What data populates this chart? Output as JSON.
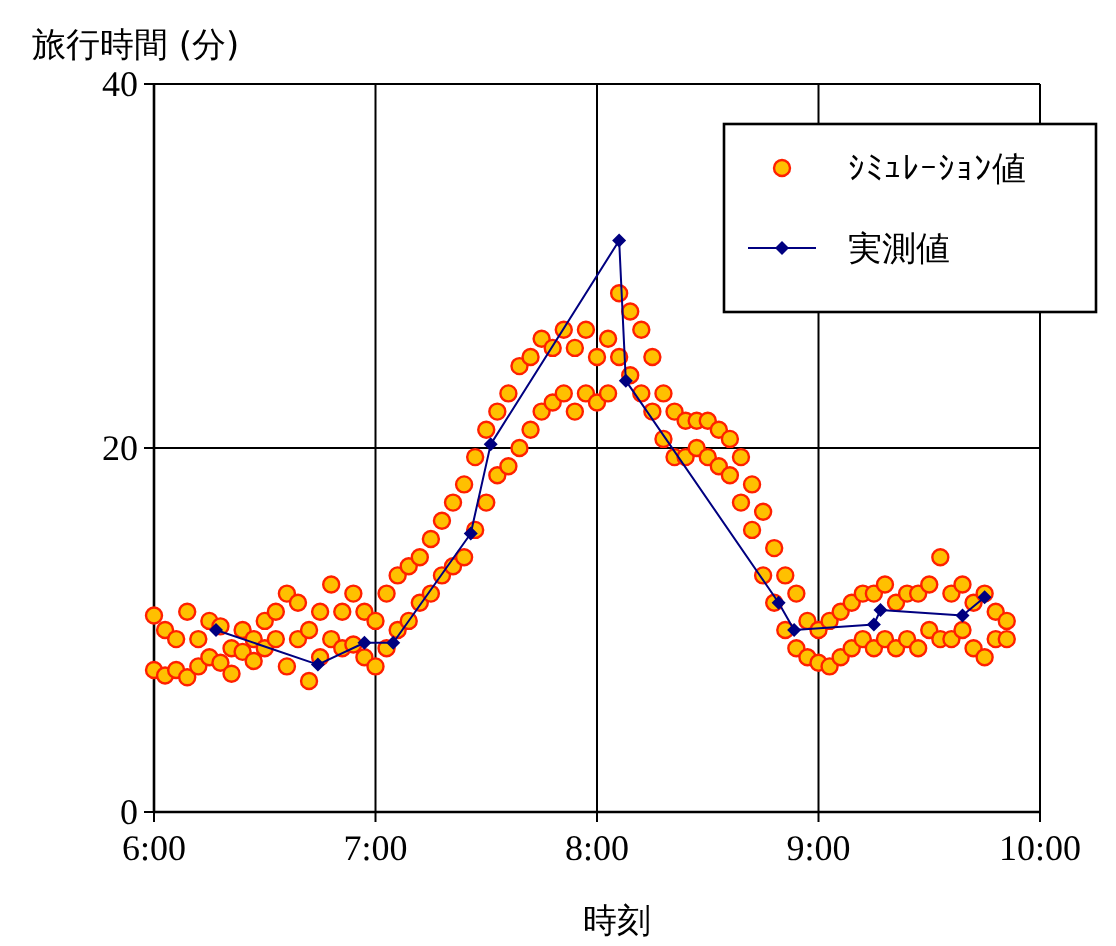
{
  "chart_data": {
    "type": "scatter",
    "ylabel": "旅行時間 (分)",
    "xlabel": "時刻",
    "xlim": [
      6,
      10
    ],
    "xticks": [
      {
        "value": 6,
        "label": "6:00"
      },
      {
        "value": 7,
        "label": "7:00"
      },
      {
        "value": 8,
        "label": "8:00"
      },
      {
        "value": 9,
        "label": "9:00"
      },
      {
        "value": 10,
        "label": "10:00"
      }
    ],
    "ylim": [
      0,
      40
    ],
    "yticks": [
      0,
      20,
      40
    ],
    "grid": true,
    "legend": "top right",
    "series": [
      {
        "name": "ｼﾐｭﾚｰｼｮﾝ値",
        "type": "scatter",
        "marker": "circle",
        "color": "#ffc000",
        "x": [
          6.0,
          6.0,
          6.05,
          6.05,
          6.1,
          6.1,
          6.15,
          6.15,
          6.2,
          6.2,
          6.25,
          6.25,
          6.3,
          6.3,
          6.35,
          6.35,
          6.4,
          6.4,
          6.45,
          6.45,
          6.5,
          6.5,
          6.55,
          6.55,
          6.6,
          6.6,
          6.65,
          6.65,
          6.7,
          6.7,
          6.75,
          6.75,
          6.8,
          6.8,
          6.85,
          6.85,
          6.9,
          6.9,
          6.95,
          6.95,
          7.0,
          7.0,
          7.05,
          7.05,
          7.1,
          7.1,
          7.15,
          7.15,
          7.2,
          7.2,
          7.25,
          7.25,
          7.3,
          7.3,
          7.35,
          7.35,
          7.4,
          7.4,
          7.45,
          7.45,
          7.5,
          7.5,
          7.55,
          7.55,
          7.6,
          7.6,
          7.65,
          7.65,
          7.7,
          7.7,
          7.75,
          7.75,
          7.8,
          7.8,
          7.85,
          7.85,
          7.9,
          7.9,
          7.95,
          7.95,
          8.0,
          8.0,
          8.05,
          8.05,
          8.1,
          8.1,
          8.15,
          8.15,
          8.2,
          8.2,
          8.25,
          8.25,
          8.3,
          8.3,
          8.35,
          8.35,
          8.4,
          8.4,
          8.45,
          8.45,
          8.5,
          8.5,
          8.55,
          8.55,
          8.6,
          8.6,
          8.65,
          8.65,
          8.7,
          8.7,
          8.75,
          8.75,
          8.8,
          8.8,
          8.85,
          8.85,
          8.9,
          8.9,
          8.95,
          8.95,
          9.0,
          9.0,
          9.05,
          9.05,
          9.1,
          9.1,
          9.15,
          9.15,
          9.2,
          9.2,
          9.25,
          9.25,
          9.3,
          9.3,
          9.35,
          9.35,
          9.4,
          9.4,
          9.45,
          9.45,
          9.5,
          9.5,
          9.55,
          9.55,
          9.6,
          9.6,
          9.65,
          9.65,
          9.7,
          9.7,
          9.75,
          9.75,
          9.8,
          9.8,
          9.85,
          9.85
        ],
        "values": [
          7.8,
          10.8,
          7.5,
          10.0,
          7.8,
          9.5,
          7.4,
          11.0,
          8.0,
          9.5,
          8.5,
          10.5,
          8.2,
          10.2,
          7.6,
          9.0,
          8.8,
          10.0,
          9.5,
          8.3,
          9.0,
          10.5,
          9.5,
          11.0,
          8.0,
          12.0,
          9.5,
          11.5,
          7.2,
          10.0,
          8.5,
          11.0,
          9.5,
          12.5,
          9.0,
          11.0,
          9.2,
          12.0,
          8.5,
          11.0,
          8.0,
          10.5,
          9.0,
          12.0,
          10.0,
          13.0,
          10.5,
          13.5,
          11.5,
          14.0,
          12.0,
          15.0,
          13.0,
          16.0,
          13.5,
          17.0,
          14.0,
          18.0,
          15.5,
          19.5,
          17.0,
          21.0,
          18.5,
          22.0,
          19.0,
          23.0,
          20.0,
          24.5,
          21.0,
          25.0,
          22.0,
          26.0,
          22.5,
          25.5,
          23.0,
          26.5,
          22.0,
          25.5,
          23.0,
          26.5,
          22.5,
          25.0,
          23.0,
          26.0,
          25.0,
          28.5,
          24.0,
          27.5,
          23.0,
          26.5,
          22.0,
          25.0,
          20.5,
          23.0,
          19.5,
          22.0,
          19.5,
          21.5,
          20.0,
          21.5,
          19.5,
          21.5,
          19.0,
          21.0,
          18.5,
          20.5,
          17.0,
          19.5,
          15.5,
          18.0,
          13.0,
          16.5,
          11.5,
          14.5,
          10.0,
          13.0,
          9.0,
          12.0,
          8.5,
          10.5,
          8.2,
          10.0,
          8.0,
          10.5,
          8.5,
          11.0,
          9.0,
          11.5,
          9.5,
          12.0,
          9.0,
          12.0,
          9.5,
          12.5,
          9.0,
          11.5,
          9.5,
          12.0,
          9.0,
          12.0,
          10.0,
          12.5,
          9.5,
          14.0,
          9.5,
          12.0,
          10.0,
          12.5,
          9.0,
          11.5,
          8.5,
          12.0,
          9.5,
          11.0,
          9.5,
          10.5
        ]
      },
      {
        "name": "実測値",
        "type": "line",
        "marker": "diamond",
        "color": "#000080",
        "x": [
          6.28,
          6.74,
          6.95,
          7.08,
          7.43,
          7.52,
          8.1,
          8.13,
          8.82,
          8.89,
          9.25,
          9.28,
          9.65,
          9.75
        ],
        "values": [
          10.0,
          8.1,
          9.3,
          9.3,
          15.3,
          20.2,
          31.4,
          23.7,
          11.5,
          10.0,
          10.3,
          11.1,
          10.8,
          11.8
        ]
      }
    ]
  }
}
